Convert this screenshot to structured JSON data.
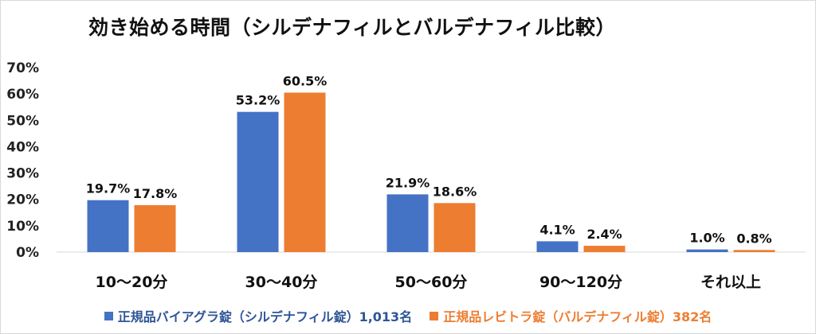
{
  "title": "効き始める時間（シルデナフィルとバルデナフィル比較）",
  "chart_data": {
    "type": "bar",
    "title": "効き始める時間（シルデナフィルとバルデナフィル比較）",
    "categories": [
      "10～20分",
      "30～40分",
      "50～60分",
      "90～120分",
      "それ以上"
    ],
    "series": [
      {
        "name": "正規品バイアグラ錠（シルデナフィル錠）1,013名",
        "values": [
          19.7,
          53.2,
          21.9,
          4.1,
          1.0
        ],
        "labels": [
          "19.7%",
          "53.2%",
          "21.9%",
          "4.1%",
          "1.0%"
        ],
        "color": "#4472c4"
      },
      {
        "name": "正規品レビトラ錠（バルデナフィル錠）382名",
        "values": [
          17.8,
          60.5,
          18.6,
          2.4,
          0.8
        ],
        "labels": [
          "17.8%",
          "60.5%",
          "18.6%",
          "2.4%",
          "0.8%"
        ],
        "color": "#ed7d31"
      }
    ],
    "ylim": [
      0,
      70
    ],
    "yticks": [
      "0%",
      "10%",
      "20%",
      "30%",
      "40%",
      "50%",
      "60%",
      "70%"
    ],
    "xlabel": "",
    "ylabel": "",
    "grid": false,
    "legend": "bottom"
  }
}
